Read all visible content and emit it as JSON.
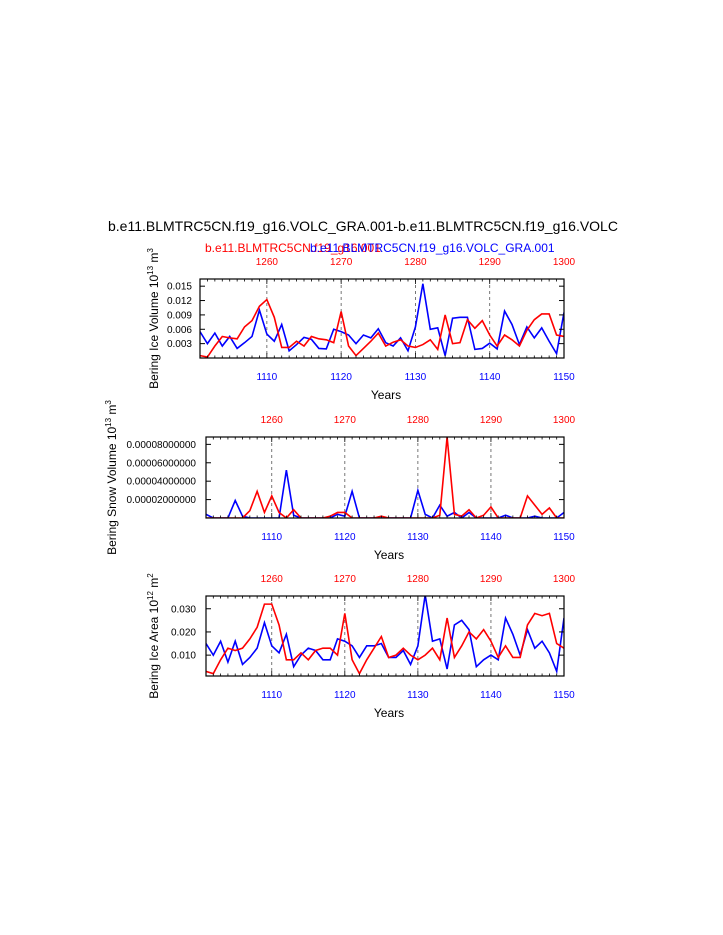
{
  "figure": {
    "title": "b.e11.BLMTRC5CN.f19_g16.VOLC_GRA.001-b.e11.BLMTRC5CN.f19_g16.VOLC",
    "subtitle_red": "b.e11.BLMTRC5CN.f19_g16.001",
    "subtitle_blue": "b.e11.BLMTRC5CN.f19_g16.VOLC_GRA.001",
    "colors": {
      "red": "#ff0000",
      "blue": "#0000ff",
      "axis": "#000000",
      "grid": "#555555"
    }
  },
  "chart_data": [
    {
      "type": "line",
      "ylabel": "Bering Ice Volume 10",
      "ylabel_exp": "13",
      "ylabel_unit": " m",
      "ylabel_unit_exp": "3",
      "xlabel": "Years",
      "ylim": [
        0.0,
        0.0165
      ],
      "yticks": [
        0.003,
        0.006,
        0.009,
        0.012,
        0.015
      ],
      "ytick_labels": [
        "0.003",
        "0.006",
        "0.009",
        "0.012",
        "0.015"
      ],
      "bottom_axis": {
        "range": [
          1101,
          1150
        ],
        "ticks": [
          1110,
          1120,
          1130,
          1140,
          1150
        ],
        "tick_labels": [
          "1110",
          "1120",
          "1130",
          "1140",
          "1150"
        ],
        "color": "#0000ff"
      },
      "top_axis": {
        "range": [
          1251,
          1300
        ],
        "ticks": [
          1260,
          1270,
          1280,
          1290,
          1300
        ],
        "tick_labels": [
          "1260",
          "1270",
          "1280",
          "1290",
          "1300"
        ],
        "color": "#ff0000"
      },
      "grid_x": [
        1110,
        1120,
        1130,
        1140
      ],
      "series": [
        {
          "color": "#0000ff",
          "x_start": 1101,
          "values": [
            0.0055,
            0.003,
            0.0052,
            0.0025,
            0.0045,
            0.002,
            0.0032,
            0.0045,
            0.01,
            0.005,
            0.0035,
            0.007,
            0.0015,
            0.0028,
            0.0043,
            0.0039,
            0.002,
            0.0019,
            0.006,
            0.0055,
            0.0048,
            0.003,
            0.0048,
            0.0042,
            0.0061,
            0.0032,
            0.0025,
            0.0042,
            0.0015,
            0.0065,
            0.0155,
            0.006,
            0.0063,
            0.0005,
            0.0083,
            0.0085,
            0.0085,
            0.0018,
            0.002,
            0.0031,
            0.0019,
            0.0098,
            0.007,
            0.0028,
            0.0065,
            0.0042,
            0.0063,
            0.0035,
            0.0009,
            0.0095
          ]
        },
        {
          "color": "#ff0000",
          "x_start": 1251,
          "values": [
            0.0005,
            0.0002,
            0.0025,
            0.0045,
            0.0042,
            0.004,
            0.0065,
            0.0078,
            0.0108,
            0.0122,
            0.0085,
            0.0022,
            0.0022,
            0.0035,
            0.0025,
            0.0045,
            0.004,
            0.0038,
            0.0032,
            0.0097,
            0.0025,
            0.0005,
            0.002,
            0.0035,
            0.0052,
            0.0025,
            0.0033,
            0.0038,
            0.0025,
            0.0022,
            0.0028,
            0.0038,
            0.0018,
            0.009,
            0.003,
            0.0032,
            0.008,
            0.0062,
            0.0078,
            0.0048,
            0.0025,
            0.0048,
            0.0038,
            0.0025,
            0.0058,
            0.008,
            0.0092,
            0.0092,
            0.0048,
            0.0045
          ]
        }
      ]
    },
    {
      "type": "line",
      "ylabel": "Bering Snow Volume 10",
      "ylabel_exp": "13",
      "ylabel_unit": " m",
      "ylabel_unit_exp": "3",
      "xlabel": "Years",
      "ylim": [
        0.0,
        8.8e-05
      ],
      "yticks": [
        2e-05,
        4e-05,
        6e-05,
        8e-05
      ],
      "ytick_labels": [
        "0.00002000000",
        "0.00004000000",
        "0.00006000000",
        "0.00008000000"
      ],
      "bottom_axis": {
        "range": [
          1101,
          1150
        ],
        "ticks": [
          1110,
          1120,
          1130,
          1140,
          1150
        ],
        "tick_labels": [
          "1110",
          "1120",
          "1130",
          "1140",
          "1150"
        ],
        "color": "#0000ff"
      },
      "top_axis": {
        "range": [
          1251,
          1300
        ],
        "ticks": [
          1260,
          1270,
          1280,
          1290,
          1300
        ],
        "tick_labels": [
          "1260",
          "1270",
          "1280",
          "1290",
          "1300"
        ],
        "color": "#ff0000"
      },
      "grid_x": [
        1110,
        1120,
        1130,
        1140
      ],
      "series": [
        {
          "color": "#0000ff",
          "x_start": 1101,
          "values": [
            4e-06,
            0,
            0,
            0,
            1.9e-05,
            2e-06,
            0,
            0,
            0,
            0,
            0,
            5.2e-05,
            3e-06,
            0,
            0,
            0,
            0,
            0,
            4e-06,
            2e-06,
            2.9e-05,
            0,
            0,
            0,
            0,
            0,
            0,
            0,
            0,
            3e-05,
            4e-06,
            0,
            1.4e-05,
            2e-06,
            6e-06,
            0,
            6e-06,
            0,
            0,
            0,
            0,
            3e-06,
            0,
            0,
            0,
            2e-06,
            0,
            0,
            0,
            6e-06
          ]
        },
        {
          "color": "#ff0000",
          "x_start": 1251,
          "values": [
            0,
            0,
            0,
            0,
            0,
            0,
            8e-06,
            2.9e-05,
            6e-06,
            2.4e-05,
            6e-06,
            0,
            9e-06,
            0,
            0,
            0,
            0,
            2e-06,
            6e-06,
            6e-06,
            0,
            0,
            0,
            0,
            2e-06,
            0,
            0,
            0,
            0,
            0,
            0,
            0,
            3e-06,
            8.8e-05,
            4e-06,
            2e-06,
            9e-06,
            0,
            3e-06,
            1.2e-05,
            0,
            0,
            0,
            0,
            2.4e-05,
            1.4e-05,
            4e-06,
            1.1e-05,
            0,
            0
          ]
        }
      ]
    },
    {
      "type": "line",
      "ylabel": "Bering Ice Area 10",
      "ylabel_exp": "12",
      "ylabel_unit": " m",
      "ylabel_unit_exp": "2",
      "xlabel": "Years",
      "ylim": [
        0.001,
        0.0355
      ],
      "yticks": [
        0.01,
        0.02,
        0.03
      ],
      "ytick_labels": [
        "0.010",
        "0.020",
        "0.030"
      ],
      "bottom_axis": {
        "range": [
          1101,
          1150
        ],
        "ticks": [
          1110,
          1120,
          1130,
          1140,
          1150
        ],
        "tick_labels": [
          "1110",
          "1120",
          "1130",
          "1140",
          "1150"
        ],
        "color": "#0000ff"
      },
      "top_axis": {
        "range": [
          1251,
          1300
        ],
        "ticks": [
          1260,
          1270,
          1280,
          1290,
          1300
        ],
        "tick_labels": [
          "1260",
          "1270",
          "1280",
          "1290",
          "1300"
        ],
        "color": "#ff0000"
      },
      "grid_x": [
        1110,
        1120,
        1130,
        1140
      ],
      "series": [
        {
          "color": "#0000ff",
          "x_start": 1101,
          "values": [
            0.015,
            0.01,
            0.016,
            0.007,
            0.016,
            0.006,
            0.009,
            0.013,
            0.024,
            0.014,
            0.011,
            0.019,
            0.005,
            0.01,
            0.013,
            0.012,
            0.008,
            0.008,
            0.017,
            0.016,
            0.014,
            0.009,
            0.014,
            0.014,
            0.015,
            0.009,
            0.009,
            0.012,
            0.006,
            0.014,
            0.036,
            0.016,
            0.017,
            0.004,
            0.023,
            0.025,
            0.021,
            0.005,
            0.008,
            0.01,
            0.008,
            0.026,
            0.019,
            0.01,
            0.021,
            0.013,
            0.016,
            0.011,
            0.003,
            0.026
          ]
        },
        {
          "color": "#ff0000",
          "x_start": 1251,
          "values": [
            0.003,
            0.002,
            0.008,
            0.013,
            0.012,
            0.013,
            0.017,
            0.022,
            0.032,
            0.032,
            0.023,
            0.008,
            0.008,
            0.011,
            0.008,
            0.012,
            0.013,
            0.013,
            0.01,
            0.028,
            0.008,
            0.002,
            0.008,
            0.013,
            0.018,
            0.009,
            0.01,
            0.013,
            0.01,
            0.008,
            0.01,
            0.013,
            0.008,
            0.026,
            0.009,
            0.014,
            0.02,
            0.017,
            0.021,
            0.016,
            0.009,
            0.014,
            0.009,
            0.009,
            0.023,
            0.028,
            0.027,
            0.028,
            0.015,
            0.013
          ]
        }
      ]
    }
  ]
}
